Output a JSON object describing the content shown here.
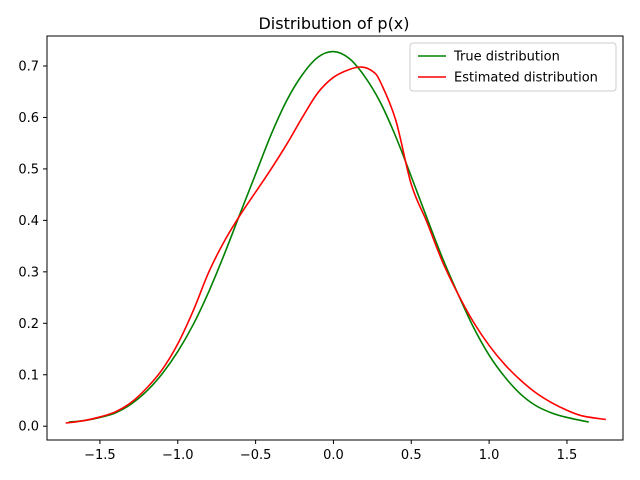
{
  "chart_data": {
    "type": "line",
    "title": "Distribution of p(x)",
    "xlabel": "",
    "ylabel": "",
    "xlim": [
      -1.84,
      1.86
    ],
    "ylim": [
      -0.0268,
      0.7583
    ],
    "xticks": [
      -1.5,
      -1.0,
      -0.5,
      0.0,
      0.5,
      1.0,
      1.5
    ],
    "xtick_labels": [
      "−1.5",
      "−1.0",
      "−0.5",
      "0.0",
      "0.5",
      "1.0",
      "1.5"
    ],
    "yticks": [
      0.0,
      0.1,
      0.2,
      0.3,
      0.4,
      0.5,
      0.6,
      0.7
    ],
    "ytick_labels": [
      "0.0",
      "0.1",
      "0.2",
      "0.3",
      "0.4",
      "0.5",
      "0.6",
      "0.7"
    ],
    "grid": false,
    "legend_position": "top-right",
    "series": [
      {
        "name": "True distribution",
        "color": "#008000",
        "x": [
          -1.7,
          -1.6,
          -1.5,
          -1.4,
          -1.3,
          -1.2,
          -1.1,
          -1.0,
          -0.9,
          -0.8,
          -0.7,
          -0.6,
          -0.5,
          -0.4,
          -0.3,
          -0.2,
          -0.1,
          0.0,
          0.1,
          0.2,
          0.3,
          0.4,
          0.5,
          0.6,
          0.7,
          0.8,
          0.9,
          1.0,
          1.1,
          1.2,
          1.3,
          1.4,
          1.5,
          1.64
        ],
        "y": [
          0.008,
          0.011,
          0.017,
          0.026,
          0.043,
          0.068,
          0.102,
          0.145,
          0.198,
          0.262,
          0.335,
          0.413,
          0.49,
          0.567,
          0.633,
          0.683,
          0.717,
          0.728,
          0.715,
          0.68,
          0.63,
          0.563,
          0.485,
          0.405,
          0.327,
          0.257,
          0.192,
          0.138,
          0.096,
          0.063,
          0.04,
          0.026,
          0.017,
          0.008
        ]
      },
      {
        "name": "Estimated distribution",
        "color": "#ff0000",
        "x": [
          -1.72,
          -1.6,
          -1.5,
          -1.4,
          -1.3,
          -1.2,
          -1.1,
          -1.0,
          -0.9,
          -0.8,
          -0.7,
          -0.6,
          -0.5,
          -0.4,
          -0.3,
          -0.2,
          -0.1,
          0.0,
          0.1,
          0.18,
          0.25,
          0.3,
          0.4,
          0.5,
          0.6,
          0.7,
          0.8,
          0.9,
          1.0,
          1.1,
          1.2,
          1.3,
          1.4,
          1.5,
          1.6,
          1.75
        ],
        "y": [
          0.006,
          0.011,
          0.018,
          0.028,
          0.046,
          0.074,
          0.11,
          0.16,
          0.225,
          0.3,
          0.36,
          0.41,
          0.455,
          0.5,
          0.548,
          0.6,
          0.648,
          0.678,
          0.693,
          0.698,
          0.69,
          0.67,
          0.595,
          0.47,
          0.397,
          0.32,
          0.257,
          0.202,
          0.157,
          0.12,
          0.09,
          0.065,
          0.046,
          0.031,
          0.02,
          0.013
        ]
      }
    ]
  }
}
